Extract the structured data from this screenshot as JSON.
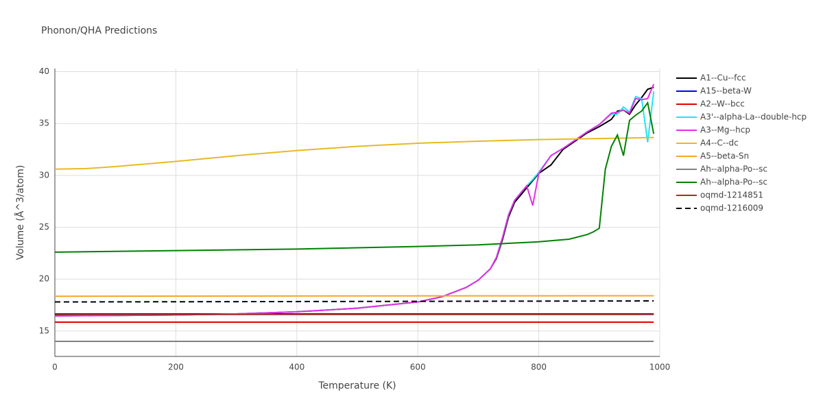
{
  "chart_data": {
    "type": "line",
    "title": "Phonon/QHA Predictions",
    "x_label": "Temperature (K)",
    "y_label": "Volume (Å^3/atom)",
    "xlim": [
      0,
      1000
    ],
    "ylim": [
      12.55,
      40.3
    ],
    "xticks": [
      0,
      200,
      400,
      600,
      800,
      1000
    ],
    "yticks": [
      15,
      20,
      25,
      30,
      35,
      40
    ],
    "grid": true,
    "series": [
      {
        "name": "A1--Cu--fcc",
        "color": "#000000",
        "x": [
          0,
          100,
          200,
          300,
          400,
          500,
          600,
          640,
          680,
          700,
          720,
          730,
          740,
          750,
          760,
          780,
          790,
          800,
          820,
          840,
          860,
          880,
          900,
          920,
          930,
          940,
          950,
          960,
          970,
          980,
          990
        ],
        "values": [
          16.5,
          16.5,
          16.55,
          16.65,
          16.85,
          17.2,
          17.8,
          18.3,
          19.2,
          19.9,
          21.0,
          22.0,
          23.8,
          26.0,
          27.4,
          28.8,
          29.5,
          30.2,
          31.0,
          32.5,
          33.3,
          34.1,
          34.7,
          35.4,
          36.2,
          36.3,
          35.9,
          36.8,
          37.5,
          38.3,
          38.5
        ]
      },
      {
        "name": "A15--beta-W",
        "color": "#0000ff",
        "x": [
          0,
          500,
          990
        ],
        "values": [
          16.65,
          16.65,
          16.65
        ]
      },
      {
        "name": "A2--W--bcc",
        "color": "#e00000",
        "x": [
          0,
          500,
          990
        ],
        "values": [
          15.85,
          15.85,
          15.85
        ]
      },
      {
        "name": "A3'--alpha-La--double-hcp",
        "color": "#1fe5f0",
        "x": [
          0,
          100,
          200,
          300,
          400,
          500,
          600,
          640,
          680,
          700,
          720,
          730,
          740,
          750,
          760,
          780,
          790,
          800,
          820,
          840,
          860,
          880,
          900,
          920,
          930,
          940,
          950,
          960,
          970,
          980,
          990
        ],
        "values": [
          16.45,
          16.5,
          16.55,
          16.65,
          16.85,
          17.2,
          17.8,
          18.3,
          19.2,
          19.9,
          21.0,
          22.1,
          24.0,
          26.2,
          27.6,
          29.0,
          29.6,
          30.3,
          31.9,
          32.6,
          33.4,
          34.2,
          34.9,
          35.9,
          35.9,
          36.6,
          36.1,
          37.6,
          37.4,
          33.2,
          38.1
        ]
      },
      {
        "name": "A3--Mg--hcp",
        "color": "#e62ee6",
        "x": [
          0,
          100,
          200,
          300,
          400,
          500,
          600,
          640,
          680,
          700,
          720,
          730,
          740,
          750,
          760,
          780,
          790,
          800,
          820,
          840,
          860,
          880,
          900,
          920,
          930,
          940,
          950,
          960,
          970,
          980,
          990
        ],
        "values": [
          16.45,
          16.5,
          16.55,
          16.65,
          16.85,
          17.2,
          17.8,
          18.3,
          19.2,
          19.9,
          21.0,
          22.1,
          24.0,
          26.2,
          27.6,
          29.0,
          27.1,
          30.2,
          31.9,
          32.6,
          33.4,
          34.2,
          34.9,
          36.0,
          36.1,
          36.3,
          36.0,
          37.4,
          37.3,
          37.4,
          38.8
        ]
      },
      {
        "name": "A4--C--dc",
        "color": "#e8b923",
        "x": [
          0,
          50,
          100,
          200,
          300,
          400,
          500,
          600,
          700,
          800,
          900,
          990
        ],
        "values": [
          30.6,
          30.65,
          30.85,
          31.35,
          31.9,
          32.4,
          32.8,
          33.1,
          33.3,
          33.45,
          33.55,
          33.65
        ]
      },
      {
        "name": "A5--beta-Sn",
        "color": "#f5a623",
        "x": [
          0,
          500,
          990
        ],
        "values": [
          18.35,
          18.38,
          18.4
        ]
      },
      {
        "name": "Ah--alpha-Po--sc",
        "color": "#808080",
        "x": [
          0,
          500,
          990
        ],
        "values": [
          14.0,
          14.0,
          14.0
        ]
      },
      {
        "name": "Ah--alpha-Po--sc",
        "color": "#008000",
        "x": [
          0,
          200,
          400,
          600,
          700,
          800,
          850,
          880,
          890,
          900,
          910,
          920,
          930,
          940,
          950,
          960,
          970,
          980,
          990
        ],
        "values": [
          22.6,
          22.75,
          22.9,
          23.15,
          23.3,
          23.6,
          23.85,
          24.3,
          24.55,
          24.9,
          30.6,
          32.8,
          33.9,
          31.9,
          35.3,
          35.8,
          36.2,
          37.0,
          34.0
        ]
      },
      {
        "name": "oqmd-1214851",
        "color": "#a52a2a",
        "x": [
          0,
          500,
          990
        ],
        "values": [
          16.6,
          16.6,
          16.6
        ]
      },
      {
        "name": "oqmd-1216009",
        "color": "#000000",
        "dash": "dash",
        "x": [
          0,
          500,
          990
        ],
        "values": [
          17.8,
          17.85,
          17.9
        ]
      }
    ]
  }
}
